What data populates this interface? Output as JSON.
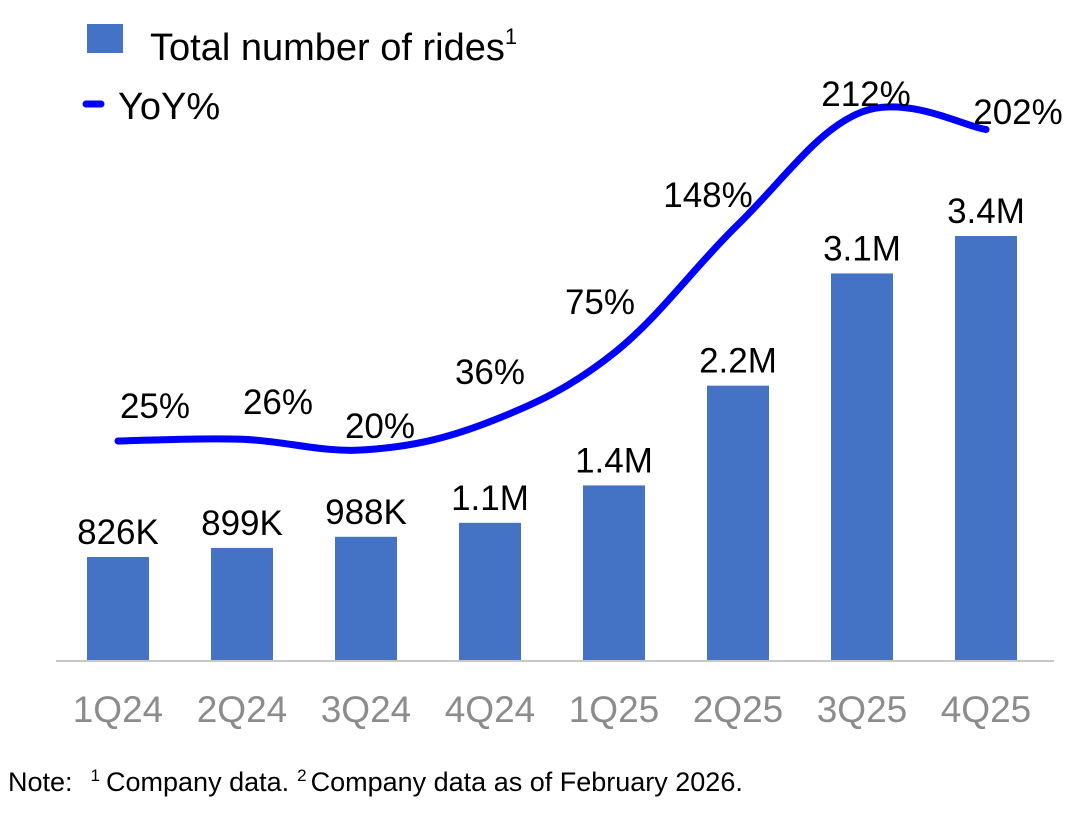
{
  "chart_data": {
    "type": "bar+line",
    "categories": [
      "1Q24",
      "2Q24",
      "3Q24",
      "4Q24",
      "1Q25",
      "2Q25",
      "3Q25",
      "4Q25"
    ],
    "series": [
      {
        "name": "Total number of rides",
        "name_superscript": "1",
        "type": "bar",
        "unit": "M",
        "values": [
          0.826,
          0.899,
          0.988,
          1.1,
          1.4,
          2.2,
          3.1,
          3.4
        ],
        "labels": [
          "826K",
          "899K",
          "988K",
          "1.1M",
          "1.4M",
          "2.2M",
          "3.1M",
          "3.4M"
        ],
        "color": "#4472C4"
      },
      {
        "name": "YoY%",
        "type": "line",
        "unit": "%",
        "values": [
          25,
          26,
          20,
          36,
          75,
          148,
          212,
          202
        ],
        "labels": [
          "25%",
          "26%",
          "20%",
          "36%",
          "75%",
          "148%",
          "212%",
          "202%"
        ],
        "color": "#0000FF"
      }
    ],
    "legend_placement": "top-left",
    "grid": false,
    "y_axis_visible": false
  },
  "note": {
    "prefix": "Note:",
    "sup1": "1",
    "text1": "Company data.",
    "sup2": "2",
    "text2": "Company data as of February 2026."
  }
}
